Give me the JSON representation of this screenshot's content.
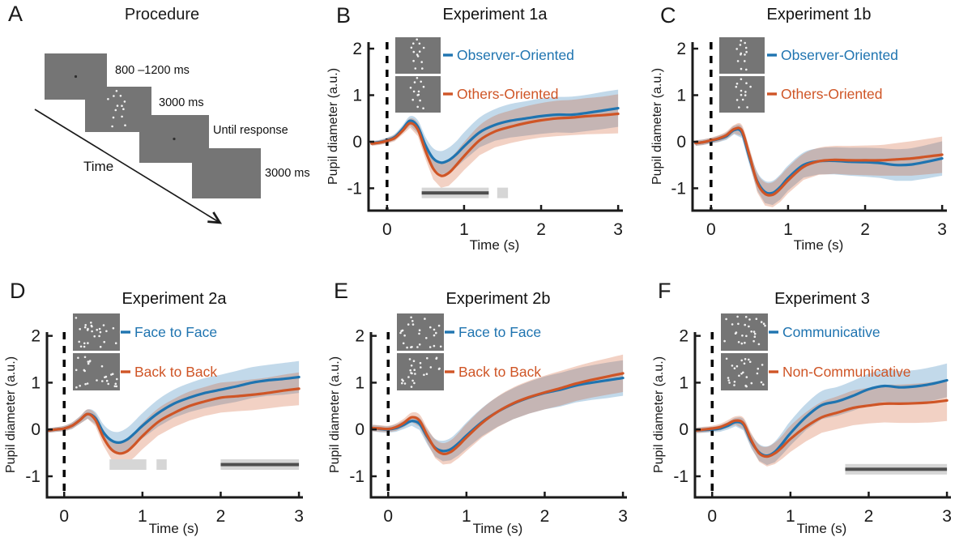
{
  "procedure": {
    "letter": "A",
    "title": "Procedure",
    "arrow_label": "Time",
    "screens": [
      {
        "label": "800 –1200 ms",
        "content": "fixation"
      },
      {
        "label": "3000 ms",
        "content": "dot-figure"
      },
      {
        "label": "Until response",
        "content": "fixation"
      },
      {
        "label": "3000 ms",
        "content": "blank"
      }
    ]
  },
  "colors": {
    "blue": "#1f74b0",
    "orange": "#cf5526",
    "band_opacity": 0.27,
    "screen_gray": "#757575",
    "stimulus_dot": "#f2f2f2",
    "sig_light": "#d6d6d6",
    "sig_dark": "#4f4f4f",
    "axis": "#1a1a1a",
    "event_line": "#000000"
  },
  "chart_data": [
    {
      "type": "line",
      "panel": "B",
      "title": "Experiment 1a",
      "row": 1,
      "xlabel": "Time (s)",
      "ylabel": "Pupil diameter (a.u.)",
      "xlim": [
        -0.24,
        3.03
      ],
      "ylim": [
        -1.48,
        2.14
      ],
      "xticks": [
        0,
        1,
        2,
        3
      ],
      "yticks": [
        -1,
        0,
        1,
        2
      ],
      "event_line_x": 0,
      "inset_style": "single-figure",
      "legend_position": "top-left-inset",
      "x": [
        -0.2,
        -0.1,
        0,
        0.1,
        0.2,
        0.3,
        0.4,
        0.5,
        0.6,
        0.7,
        0.8,
        0.9,
        1,
        1.2,
        1.4,
        1.6,
        1.8,
        2,
        2.2,
        2.4,
        2.6,
        2.8,
        3
      ],
      "series": [
        {
          "name": "Observer-Oriented",
          "color": "#1f74b0",
          "y": [
            -0.03,
            -0.01,
            0.03,
            0.1,
            0.27,
            0.45,
            0.32,
            -0.08,
            -0.36,
            -0.45,
            -0.4,
            -0.27,
            -0.1,
            0.2,
            0.36,
            0.45,
            0.5,
            0.55,
            0.58,
            0.58,
            0.62,
            0.67,
            0.72
          ],
          "band": [
            0.05,
            0.05,
            0.06,
            0.07,
            0.08,
            0.1,
            0.14,
            0.18,
            0.22,
            0.25,
            0.27,
            0.28,
            0.3,
            0.32,
            0.34,
            0.36,
            0.37,
            0.38,
            0.38,
            0.39,
            0.39,
            0.4,
            0.4
          ]
        },
        {
          "name": "Others-Oriented",
          "color": "#cf5526",
          "y": [
            -0.04,
            -0.02,
            0.02,
            0.08,
            0.23,
            0.4,
            0.26,
            -0.2,
            -0.58,
            -0.73,
            -0.67,
            -0.5,
            -0.31,
            0.03,
            0.22,
            0.32,
            0.4,
            0.46,
            0.5,
            0.52,
            0.55,
            0.57,
            0.6
          ],
          "band": [
            0.05,
            0.05,
            0.06,
            0.07,
            0.08,
            0.1,
            0.14,
            0.18,
            0.23,
            0.26,
            0.28,
            0.29,
            0.3,
            0.32,
            0.34,
            0.35,
            0.36,
            0.37,
            0.38,
            0.38,
            0.39,
            0.4,
            0.42
          ]
        }
      ],
      "sig_bars": [
        {
          "x1": 0.45,
          "x2": 1.32,
          "y": -1.1,
          "style": "dark-on-light"
        },
        {
          "x1": 1.43,
          "x2": 1.57,
          "y": -1.1,
          "style": "light"
        }
      ]
    },
    {
      "type": "line",
      "panel": "C",
      "title": "Experiment 1b",
      "row": 1,
      "xlabel": "Time (s)",
      "ylabel": "Pupil diameter (a.u.)",
      "xlim": [
        -0.24,
        3.03
      ],
      "ylim": [
        -1.48,
        2.14
      ],
      "xticks": [
        0,
        1,
        2,
        3
      ],
      "yticks": [
        -1,
        0,
        1,
        2
      ],
      "event_line_x": 0,
      "inset_style": "single-figure",
      "legend_position": "top-left-inset",
      "x": [
        -0.2,
        -0.1,
        0,
        0.1,
        0.2,
        0.3,
        0.4,
        0.5,
        0.6,
        0.7,
        0.8,
        0.9,
        1,
        1.2,
        1.4,
        1.6,
        1.8,
        2,
        2.2,
        2.4,
        2.6,
        2.8,
        3
      ],
      "series": [
        {
          "name": "Observer-Oriented",
          "color": "#1f74b0",
          "y": [
            -0.03,
            -0.01,
            0.02,
            0.06,
            0.12,
            0.25,
            0.2,
            -0.35,
            -0.85,
            -1.08,
            -1.1,
            -0.97,
            -0.78,
            -0.5,
            -0.42,
            -0.41,
            -0.43,
            -0.44,
            -0.46,
            -0.5,
            -0.49,
            -0.43,
            -0.36
          ],
          "band": [
            0.06,
            0.06,
            0.06,
            0.07,
            0.08,
            0.09,
            0.12,
            0.16,
            0.2,
            0.24,
            0.26,
            0.27,
            0.27,
            0.27,
            0.28,
            0.29,
            0.3,
            0.31,
            0.32,
            0.34,
            0.35,
            0.36,
            0.37
          ]
        },
        {
          "name": "Others-Oriented",
          "color": "#cf5526",
          "y": [
            -0.03,
            -0.01,
            0.03,
            0.07,
            0.14,
            0.27,
            0.24,
            -0.3,
            -0.88,
            -1.12,
            -1.14,
            -1.01,
            -0.83,
            -0.54,
            -0.42,
            -0.39,
            -0.4,
            -0.4,
            -0.4,
            -0.38,
            -0.36,
            -0.32,
            -0.28
          ],
          "band": [
            0.06,
            0.06,
            0.06,
            0.07,
            0.08,
            0.09,
            0.12,
            0.16,
            0.21,
            0.25,
            0.27,
            0.28,
            0.28,
            0.28,
            0.29,
            0.3,
            0.31,
            0.32,
            0.33,
            0.35,
            0.37,
            0.38,
            0.39
          ]
        }
      ],
      "sig_bars": []
    },
    {
      "type": "line",
      "panel": "D",
      "title": "Experiment 2a",
      "row": 2,
      "xlabel": "Time (s)",
      "ylabel": "Pupil diameter (a.u.)",
      "xlim": [
        -0.22,
        3.02
      ],
      "ylim": [
        -1.45,
        2.08
      ],
      "xticks": [
        0,
        1,
        2,
        3
      ],
      "yticks": [
        -1,
        0,
        1,
        2
      ],
      "event_line_x": 0,
      "inset_style": "dot-pair",
      "legend_position": "top-left-inset",
      "x": [
        -0.2,
        -0.1,
        0,
        0.1,
        0.2,
        0.3,
        0.4,
        0.5,
        0.6,
        0.7,
        0.8,
        0.9,
        1,
        1.2,
        1.4,
        1.6,
        1.8,
        2,
        2.2,
        2.4,
        2.6,
        2.8,
        3
      ],
      "series": [
        {
          "name": "Face to Face",
          "color": "#1f74b0",
          "y": [
            -0.02,
            0,
            0.02,
            0.08,
            0.2,
            0.33,
            0.24,
            -0.06,
            -0.23,
            -0.28,
            -0.22,
            -0.08,
            0.08,
            0.35,
            0.55,
            0.68,
            0.78,
            0.85,
            0.92,
            1,
            1.05,
            1.08,
            1.12
          ],
          "band": [
            0.05,
            0.05,
            0.06,
            0.07,
            0.08,
            0.1,
            0.13,
            0.17,
            0.2,
            0.23,
            0.25,
            0.26,
            0.27,
            0.29,
            0.3,
            0.31,
            0.32,
            0.32,
            0.33,
            0.33,
            0.33,
            0.34,
            0.34
          ]
        },
        {
          "name": "Back to Back",
          "color": "#cf5526",
          "y": [
            -0.02,
            0,
            0.02,
            0.08,
            0.2,
            0.33,
            0.2,
            -0.17,
            -0.42,
            -0.51,
            -0.47,
            -0.32,
            -0.14,
            0.16,
            0.35,
            0.5,
            0.6,
            0.68,
            0.71,
            0.74,
            0.78,
            0.83,
            0.87
          ],
          "band": [
            0.05,
            0.05,
            0.06,
            0.07,
            0.08,
            0.1,
            0.13,
            0.17,
            0.21,
            0.24,
            0.26,
            0.27,
            0.28,
            0.29,
            0.3,
            0.31,
            0.31,
            0.32,
            0.32,
            0.33,
            0.33,
            0.34,
            0.35
          ]
        }
      ],
      "sig_bars": [
        {
          "x1": 0.58,
          "x2": 1.05,
          "y": -0.75,
          "style": "light"
        },
        {
          "x1": 1.18,
          "x2": 1.31,
          "y": -0.75,
          "style": "light"
        },
        {
          "x1": 2.0,
          "x2": 3.0,
          "y": -0.75,
          "style": "dark-on-light"
        }
      ]
    },
    {
      "type": "line",
      "panel": "E",
      "title": "Experiment 2b",
      "row": 2,
      "xlabel": "Time (s)",
      "ylabel": "Pupil diameter (a.u.)",
      "xlim": [
        -0.22,
        3.02
      ],
      "ylim": [
        -1.45,
        2.08
      ],
      "xticks": [
        0,
        1,
        2,
        3
      ],
      "yticks": [
        -1,
        0,
        1,
        2
      ],
      "event_line_x": 0,
      "inset_style": "dot-pair",
      "legend_position": "top-left-inset",
      "x": [
        -0.2,
        -0.1,
        0,
        0.1,
        0.2,
        0.3,
        0.4,
        0.5,
        0.6,
        0.7,
        0.8,
        0.9,
        1,
        1.2,
        1.4,
        1.6,
        1.8,
        2,
        2.2,
        2.4,
        2.6,
        2.8,
        3
      ],
      "series": [
        {
          "name": "Face to Face",
          "color": "#1f74b0",
          "y": [
            0.03,
            0.01,
            0,
            0.03,
            0.1,
            0.18,
            0.12,
            -0.16,
            -0.39,
            -0.46,
            -0.42,
            -0.29,
            -0.13,
            0.16,
            0.38,
            0.55,
            0.68,
            0.78,
            0.85,
            0.94,
            1,
            1.05,
            1.1
          ],
          "band": [
            0.07,
            0.07,
            0.07,
            0.08,
            0.09,
            0.1,
            0.13,
            0.16,
            0.19,
            0.22,
            0.24,
            0.26,
            0.28,
            0.3,
            0.32,
            0.33,
            0.34,
            0.35,
            0.36,
            0.36,
            0.37,
            0.38,
            0.38
          ]
        },
        {
          "name": "Back to Back",
          "color": "#cf5526",
          "y": [
            0.03,
            0.02,
            0.01,
            0.05,
            0.14,
            0.26,
            0.19,
            -0.13,
            -0.41,
            -0.52,
            -0.48,
            -0.34,
            -0.17,
            0.14,
            0.38,
            0.56,
            0.69,
            0.79,
            0.88,
            0.98,
            1.06,
            1.13,
            1.2
          ],
          "band": [
            0.07,
            0.07,
            0.07,
            0.08,
            0.09,
            0.1,
            0.13,
            0.16,
            0.2,
            0.23,
            0.25,
            0.27,
            0.29,
            0.31,
            0.33,
            0.34,
            0.35,
            0.36,
            0.37,
            0.37,
            0.38,
            0.39,
            0.4
          ]
        }
      ],
      "sig_bars": []
    },
    {
      "type": "line",
      "panel": "F",
      "title": "Experiment 3",
      "row": 2,
      "xlabel": "Time (s)",
      "ylabel": "Pupil diameter (a.u.)",
      "xlim": [
        -0.22,
        3.02
      ],
      "ylim": [
        -1.45,
        2.08
      ],
      "xticks": [
        0,
        1,
        2,
        3
      ],
      "yticks": [
        -1,
        0,
        1,
        2
      ],
      "event_line_x": 0,
      "inset_style": "dot-pair",
      "legend_position": "top-left-inset",
      "x": [
        -0.2,
        -0.1,
        0,
        0.1,
        0.2,
        0.3,
        0.4,
        0.5,
        0.6,
        0.7,
        0.8,
        0.9,
        1,
        1.2,
        1.4,
        1.6,
        1.8,
        2,
        2.2,
        2.4,
        2.6,
        2.8,
        3
      ],
      "series": [
        {
          "name": "Communicative",
          "color": "#1f74b0",
          "y": [
            -0.02,
            -0.01,
            0,
            0.02,
            0.08,
            0.16,
            0.1,
            -0.26,
            -0.49,
            -0.56,
            -0.48,
            -0.29,
            -0.08,
            0.27,
            0.52,
            0.6,
            0.72,
            0.86,
            0.93,
            0.9,
            0.92,
            0.97,
            1.05
          ],
          "band": [
            0.06,
            0.06,
            0.06,
            0.07,
            0.08,
            0.09,
            0.12,
            0.15,
            0.18,
            0.2,
            0.22,
            0.24,
            0.26,
            0.28,
            0.3,
            0.31,
            0.32,
            0.33,
            0.34,
            0.35,
            0.35,
            0.36,
            0.36
          ]
        },
        {
          "name": "Non-Communicative",
          "color": "#cf5526",
          "y": [
            -0.02,
            0,
            0.02,
            0.05,
            0.12,
            0.19,
            0.13,
            -0.23,
            -0.51,
            -0.58,
            -0.51,
            -0.37,
            -0.2,
            0.06,
            0.26,
            0.36,
            0.46,
            0.51,
            0.55,
            0.55,
            0.56,
            0.58,
            0.62
          ],
          "band": [
            0.06,
            0.06,
            0.06,
            0.07,
            0.08,
            0.09,
            0.12,
            0.15,
            0.18,
            0.21,
            0.23,
            0.25,
            0.28,
            0.31,
            0.33,
            0.35,
            0.37,
            0.38,
            0.4,
            0.41,
            0.42,
            0.43,
            0.44
          ]
        }
      ],
      "sig_bars": [
        {
          "x1": 1.7,
          "x2": 3.0,
          "y": -0.85,
          "style": "dark-on-light"
        }
      ]
    }
  ]
}
